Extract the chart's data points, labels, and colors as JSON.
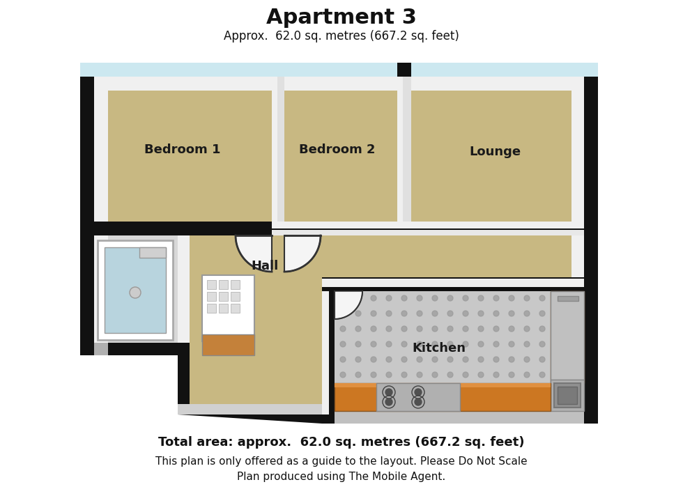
{
  "title": "Apartment 3",
  "subtitle": "Approx.  62.0 sq. metres (667.2 sq. feet)",
  "footer_line1": "Total area: approx.  62.0 sq. metres (667.2 sq. feet)",
  "footer_line2": "This plan is only offered as a guide to the layout. Please Do Not Scale",
  "footer_line3": "Plan produced using The Mobile Agent.",
  "bg_color": "#ffffff",
  "wall_color": "#111111",
  "floor_tan": "#c8b882",
  "floor_light": "#d8cc9a",
  "ceiling_blue": "#cce8f0",
  "kitchen_floor": "#c8c8c8",
  "kitchen_unit": "#cc7722",
  "wall_white": "#f0f0f0",
  "wall_grey": "#d8d8d8",
  "wall_dark": "#b0b0b0",
  "white": "#ffffff",
  "off_white": "#f5f5f5"
}
